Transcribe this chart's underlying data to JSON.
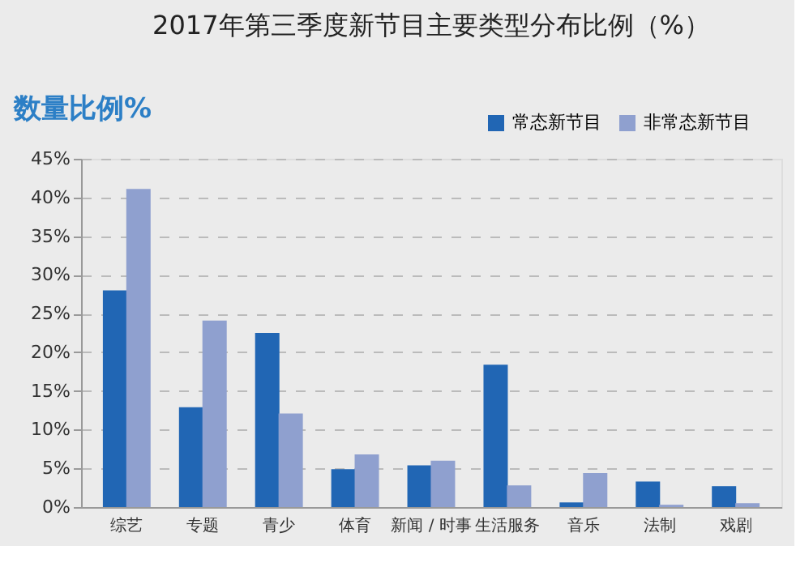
{
  "chart_data": {
    "type": "bar",
    "title": "2017年第三季度新节目主要类型分布比例（%）",
    "ylabel": "数量比例%",
    "categories": [
      "综艺",
      "专题",
      "青少",
      "体育",
      "新闻 / 时事",
      "生活服务",
      "音乐",
      "法制",
      "戏剧"
    ],
    "series": [
      {
        "name": "常态新节目",
        "color": "#2166b4",
        "values": [
          28.0,
          12.9,
          22.5,
          4.9,
          5.4,
          18.4,
          0.6,
          3.3,
          2.7
        ]
      },
      {
        "name": "非常态新节目",
        "color": "#8fa0cf",
        "values": [
          41.1,
          24.1,
          12.1,
          6.8,
          6.0,
          2.8,
          4.4,
          0.3,
          0.5
        ]
      }
    ],
    "ylim": [
      0,
      45
    ],
    "yticks": [
      {
        "value": 0,
        "label": "0%"
      },
      {
        "value": 5,
        "label": "5%"
      },
      {
        "value": 10,
        "label": "10%"
      },
      {
        "value": 15,
        "label": "15%"
      },
      {
        "value": 20,
        "label": "20%"
      },
      {
        "value": 25,
        "label": "25%"
      },
      {
        "value": 30,
        "label": "30%"
      },
      {
        "value": 35,
        "label": "35%"
      },
      {
        "value": 40,
        "label": "40%"
      },
      {
        "value": 45,
        "label": "45%"
      }
    ],
    "grid": "y",
    "legend": "top right"
  }
}
